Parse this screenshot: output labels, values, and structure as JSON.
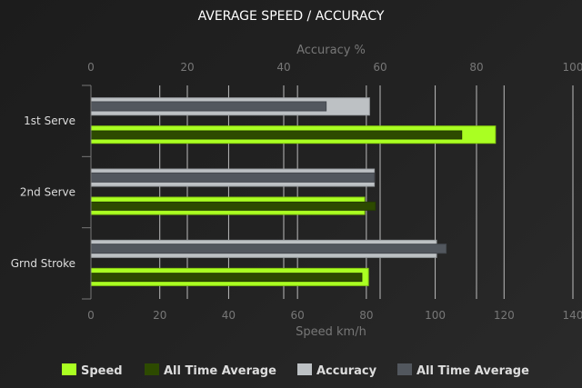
{
  "chart_data": {
    "type": "bar",
    "orientation": "horizontal",
    "title": "AVERAGE SPEED / ACCURACY",
    "categories": [
      "1st Serve",
      "2nd Serve",
      "Grnd Stroke"
    ],
    "x_axis_bottom": {
      "label": "Speed km/h",
      "range": [
        0,
        140
      ],
      "ticks": [
        0,
        20,
        40,
        60,
        80,
        100,
        120,
        140
      ]
    },
    "x_axis_top": {
      "label": "Accuracy %",
      "range": [
        0,
        100
      ],
      "ticks": [
        0,
        20,
        40,
        60,
        80,
        100
      ]
    },
    "series": [
      {
        "name": "Speed",
        "axis": "bottom",
        "color": "#aaff22",
        "values": [
          117.5,
          79.5,
          80.6
        ]
      },
      {
        "name": "All Time Average",
        "axis": "bottom",
        "color": "#2d4a00",
        "values": [
          107.7,
          82.6,
          78.7
        ]
      },
      {
        "name": "Accuracy",
        "axis": "top",
        "color": "#bdc1c4",
        "values": [
          57.8,
          58.8,
          71.7
        ]
      },
      {
        "name": "All Time Average",
        "axis": "top",
        "color": "#52575e",
        "values": [
          48.8,
          58.8,
          73.7
        ]
      }
    ],
    "grid": true,
    "legend": "bottom"
  }
}
